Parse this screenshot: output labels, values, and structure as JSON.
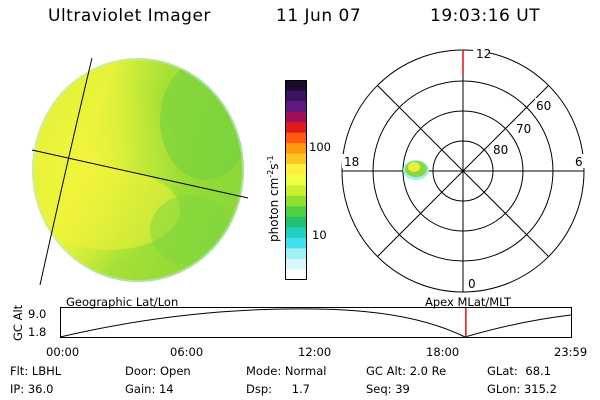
{
  "header": {
    "instrument": "Ultraviolet Imager",
    "date": "11 Jun 07",
    "time": "19:03:16 UT"
  },
  "colorbar": {
    "label": "photon cm-2s-1",
    "ticks": [
      "100",
      "10"
    ],
    "colors": [
      "#1a0a2e",
      "#3a1460",
      "#601880",
      "#a0105a",
      "#e01a1a",
      "#ff5a10",
      "#ff9a10",
      "#ffc820",
      "#fff040",
      "#f0ff40",
      "#c8f030",
      "#90e030",
      "#50d040",
      "#20c070",
      "#20d0c0",
      "#40e0f0",
      "#a0f0f8",
      "#d8f8fc",
      "#ffffff"
    ]
  },
  "polar_plot": {
    "mlt_labels": {
      "top": "12",
      "left": "18",
      "right": "6",
      "bottom": "0"
    },
    "lat_labels": [
      "60",
      "70",
      "80"
    ]
  },
  "timeline": {
    "ylabel": "GC Alt",
    "ymax_label": "9.0",
    "ymin_label": "1.8",
    "left_title": "Geographic Lat/Lon",
    "right_title": "Apex MLat/MLT",
    "xticks": [
      "00:00",
      "06:00",
      "12:00",
      "18:00",
      "23:59"
    ],
    "marker_time_fraction": 0.7939,
    "marker_color": "#e01010"
  },
  "footer": {
    "row1": [
      {
        "key": "Flt:",
        "value": "LBHL"
      },
      {
        "key": "Door:",
        "value": "Open"
      },
      {
        "key": "Mode:",
        "value": "Normal"
      },
      {
        "key": "GC Alt:",
        "value": "2.0 Re"
      },
      {
        "key": "GLat:",
        "value": "68.1"
      }
    ],
    "row2": [
      {
        "key": "IP:",
        "value": "36.0"
      },
      {
        "key": "Gain:",
        "value": "14"
      },
      {
        "key": "Dsp:",
        "value": "1.7"
      },
      {
        "key": "Seq:",
        "value": "39"
      },
      {
        "key": "GLon:",
        "value": "315.2"
      }
    ]
  }
}
